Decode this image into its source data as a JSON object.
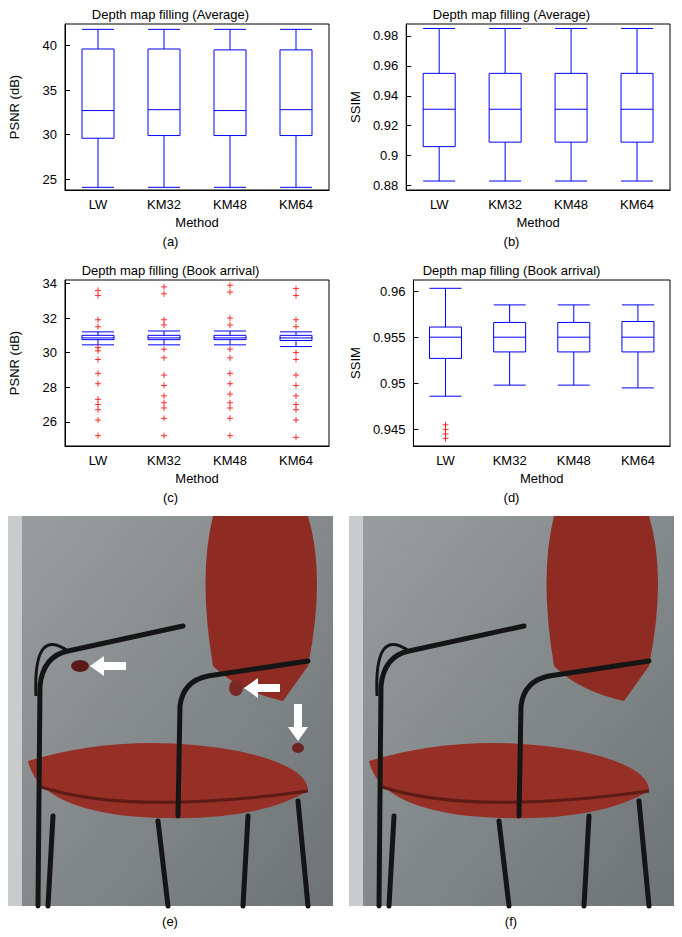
{
  "chart_data": [
    {
      "label": "(a)",
      "type": "boxplot",
      "title": "Depth map filling (Average)",
      "xlabel": "Method",
      "ylabel": "PSNR (dB)",
      "categories": [
        "LW",
        "KM32",
        "KM48",
        "KM64"
      ],
      "ylim": [
        23.8,
        42.4
      ],
      "yticks": [
        25,
        30,
        35,
        40
      ],
      "grid": false,
      "series": [
        {
          "type": "boxplot",
          "color": "#0000ff",
          "values": [
            [
              24.1,
              29.6,
              32.7,
              39.6,
              41.8
            ],
            [
              24.1,
              29.9,
              32.8,
              39.6,
              41.8
            ],
            [
              24.1,
              29.9,
              32.7,
              39.5,
              41.8
            ],
            [
              24.1,
              29.9,
              32.8,
              39.5,
              41.8
            ]
          ]
        },
        {
          "type": "scatter",
          "color": "#ff0000",
          "marker": "plus",
          "values": [
            [],
            [],
            [],
            []
          ]
        }
      ]
    },
    {
      "label": "(b)",
      "type": "boxplot",
      "title": "Depth map filling (Average)",
      "xlabel": "Method",
      "ylabel": "SSIM",
      "categories": [
        "LW",
        "KM32",
        "KM48",
        "KM64"
      ],
      "ylim": [
        0.877,
        0.988
      ],
      "yticks": [
        0.88,
        0.9,
        0.92,
        0.94,
        0.96,
        0.98
      ],
      "grid": false,
      "series": [
        {
          "type": "boxplot",
          "color": "#0000ff",
          "values": [
            [
              0.883,
              0.906,
              0.931,
              0.955,
              0.985
            ],
            [
              0.883,
              0.909,
              0.931,
              0.955,
              0.985
            ],
            [
              0.883,
              0.909,
              0.931,
              0.955,
              0.985
            ],
            [
              0.883,
              0.909,
              0.931,
              0.955,
              0.985
            ]
          ]
        },
        {
          "type": "scatter",
          "color": "#ff0000",
          "marker": "plus",
          "values": [
            [],
            [],
            [],
            []
          ]
        }
      ]
    },
    {
      "label": "(c)",
      "type": "boxplot",
      "title": "Depth map filling (Book arrival)",
      "xlabel": "Method",
      "ylabel": "PSNR (dB)",
      "categories": [
        "LW",
        "KM32",
        "KM48",
        "KM64"
      ],
      "ylim": [
        24.6,
        34.2
      ],
      "yticks": [
        26,
        28,
        30,
        32,
        34
      ],
      "grid": false,
      "series": [
        {
          "type": "boxplot",
          "color": "#0000ff",
          "values": [
            [
              30.45,
              30.75,
              30.85,
              31.0,
              31.2
            ],
            [
              30.45,
              30.75,
              30.85,
              31.0,
              31.25
            ],
            [
              30.45,
              30.75,
              30.85,
              31.0,
              31.25
            ],
            [
              30.35,
              30.7,
              30.85,
              31.0,
              31.2
            ]
          ]
        },
        {
          "type": "scatter",
          "color": "#ff0000",
          "marker": "plus",
          "values": [
            [
              25.2,
              26.1,
              26.7,
              27.0,
              27.3,
              28.2,
              28.8,
              29.6,
              30.1,
              30.3,
              31.5,
              31.9,
              33.3,
              33.6
            ],
            [
              25.2,
              26.2,
              26.8,
              27.1,
              27.5,
              28.1,
              28.7,
              29.7,
              30.2,
              31.6,
              31.9,
              33.4,
              33.8
            ],
            [
              25.2,
              26.2,
              26.8,
              27.1,
              27.6,
              28.2,
              28.8,
              29.7,
              30.2,
              31.6,
              32.0,
              33.5,
              33.9
            ],
            [
              25.1,
              26.1,
              26.7,
              27.0,
              27.5,
              28.1,
              28.7,
              29.6,
              30.0,
              31.5,
              31.9,
              33.3,
              33.7
            ]
          ]
        }
      ]
    },
    {
      "label": "(d)",
      "type": "boxplot",
      "title": "Depth map filling (Book arrival)",
      "xlabel": "Method",
      "ylabel": "SSIM",
      "categories": [
        "LW",
        "KM32",
        "KM48",
        "KM64"
      ],
      "ylim": [
        0.9432,
        0.9612
      ],
      "yticks": [
        0.945,
        0.95,
        0.955,
        0.96
      ],
      "grid": false,
      "series": [
        {
          "type": "boxplot",
          "color": "#0000ff",
          "values": [
            [
              0.9486,
              0.9527,
              0.955,
              0.9561,
              0.9603
            ],
            [
              0.9498,
              0.9534,
              0.955,
              0.9566,
              0.9585
            ],
            [
              0.9498,
              0.9534,
              0.955,
              0.9566,
              0.9585
            ],
            [
              0.9495,
              0.9534,
              0.955,
              0.9567,
              0.9585
            ]
          ]
        },
        {
          "type": "scatter",
          "color": "#ff0000",
          "marker": "plus",
          "values": [
            [
              0.9455,
              0.945,
              0.9445,
              0.944
            ],
            [],
            [],
            []
          ]
        }
      ]
    }
  ],
  "images": [
    {
      "label": "(e)"
    },
    {
      "label": "(f)"
    }
  ]
}
